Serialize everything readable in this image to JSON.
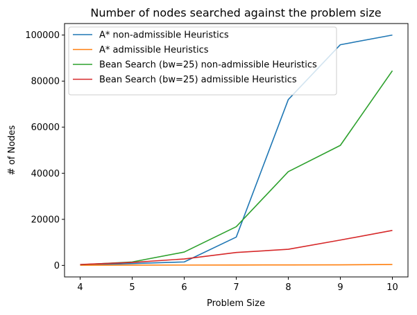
{
  "chart_data": {
    "type": "line",
    "title": "Number of nodes searched against the problem size",
    "xlabel": "Problem Size",
    "ylabel": "# of Nodes",
    "x": [
      4,
      5,
      6,
      7,
      8,
      9,
      10
    ],
    "xlim": [
      3.7,
      10.3
    ],
    "ylim": [
      -5000,
      105000
    ],
    "xticks": [
      4,
      5,
      6,
      7,
      8,
      9,
      10
    ],
    "yticks": [
      0,
      20000,
      40000,
      60000,
      80000,
      100000
    ],
    "grid": false,
    "legend_position": "top-left",
    "series": [
      {
        "name": "A* non-admissible Heuristics",
        "color": "#1f77b4",
        "values": [
          200,
          800,
          1500,
          12300,
          72000,
          95800,
          100000
        ]
      },
      {
        "name": "A* admissible Heuristics",
        "color": "#ff7f0e",
        "values": [
          100,
          120,
          150,
          180,
          200,
          250,
          400
        ]
      },
      {
        "name": "Bean Search (bw=25) non-admissible Heuristics",
        "color": "#2ca02c",
        "values": [
          300,
          1500,
          5800,
          16800,
          40700,
          52100,
          84500
        ]
      },
      {
        "name": "Bean Search (bw=25) admissible Heuristics",
        "color": "#d62728",
        "values": [
          400,
          1300,
          2800,
          5600,
          7000,
          11000,
          15200
        ]
      }
    ]
  }
}
